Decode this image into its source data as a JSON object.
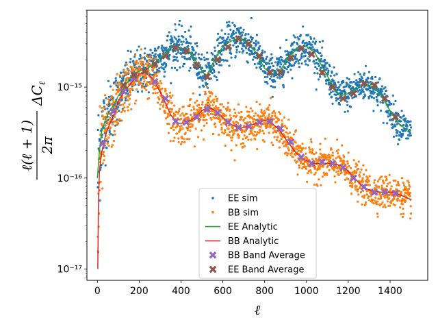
{
  "chart_data": {
    "type": "scatter",
    "title": "",
    "xlabel": "ℓ",
    "ylabel": "ℓ(ℓ+1)/2π ΔCℓ",
    "xscale": "linear",
    "yscale": "log",
    "xlim": [
      -50,
      1580
    ],
    "ylim": [
      7.5e-18,
      7e-15
    ],
    "xticks": [
      0,
      200,
      400,
      600,
      800,
      1000,
      1200,
      1400
    ],
    "yticks": [
      1e-17,
      1e-16,
      1e-15
    ],
    "ytick_labels": [
      "10⁻¹⁷",
      "10⁻¹⁶",
      "10⁻¹⁵"
    ],
    "legend_position": "lower-center",
    "series": [
      {
        "name": "EE sim",
        "kind": "scatter",
        "color": "#1f77b4",
        "note": "per-multipole noisy samples scattered around EE Analytic (about 1500 points)"
      },
      {
        "name": "BB sim",
        "kind": "scatter",
        "color": "#ff7f0e",
        "note": "per-multipole noisy samples scattered around BB Analytic (about 1500 points)"
      },
      {
        "name": "EE Analytic",
        "kind": "line",
        "color": "#2ca02c",
        "x": [
          0,
          10,
          20,
          40,
          60,
          80,
          100,
          130,
          160,
          200,
          240,
          280,
          320,
          360,
          400,
          440,
          480,
          520,
          560,
          600,
          640,
          680,
          720,
          760,
          800,
          840,
          880,
          920,
          960,
          1000,
          1040,
          1080,
          1120,
          1160,
          1200,
          1240,
          1280,
          1320,
          1360,
          1400,
          1440,
          1480,
          1500
        ],
        "y": [
          1e-16,
          2e-16,
          3.2e-16,
          4.5e-16,
          5.5e-16,
          6.5e-16,
          8e-16,
          1e-15,
          1.3e-15,
          1.5e-15,
          1.6e-15,
          1.9e-15,
          2.3e-15,
          2.8e-15,
          2.7e-15,
          2.5e-15,
          1.8e-15,
          1.3e-15,
          2e-15,
          2.8e-15,
          3.2e-15,
          3.5e-15,
          3e-15,
          2.4e-15,
          1.6e-15,
          1.4e-15,
          1.6e-15,
          2.2e-15,
          2.7e-15,
          2.8e-15,
          2.4e-15,
          1.6e-15,
          1.1e-15,
          8e-16,
          8.5e-16,
          1e-15,
          1.1e-15,
          1e-15,
          8e-16,
          5.5e-16,
          4e-16,
          3.4e-16,
          3.3e-16
        ]
      },
      {
        "name": "BB Analytic",
        "kind": "line",
        "color": "#d62728",
        "x": [
          2,
          5,
          10,
          20,
          40,
          60,
          80,
          100,
          130,
          160,
          200,
          230,
          270,
          310,
          350,
          380,
          420,
          460,
          500,
          530,
          560,
          600,
          640,
          680,
          720,
          760,
          800,
          830,
          870,
          910,
          950,
          990,
          1030,
          1070,
          1110,
          1150,
          1190,
          1230,
          1270,
          1310,
          1350,
          1390,
          1430,
          1470,
          1500
        ],
        "y": [
          1e-17,
          5e-17,
          1.2e-16,
          1.9e-16,
          3e-16,
          4e-16,
          5e-16,
          7e-16,
          9e-16,
          1.1e-15,
          1.4e-15,
          1.45e-15,
          1.2e-15,
          8e-16,
          5e-16,
          4e-16,
          4e-16,
          4.5e-16,
          5.5e-16,
          6e-16,
          5.6e-16,
          4.6e-16,
          3.9e-16,
          3.5e-16,
          3.7e-16,
          4e-16,
          4.3e-16,
          4.1e-16,
          3.4e-16,
          2.5e-16,
          1.9e-16,
          1.6e-16,
          1.45e-16,
          1.45e-16,
          1.45e-16,
          1.4e-16,
          1.25e-16,
          1e-16,
          8e-17,
          7.2e-17,
          7e-17,
          7e-17,
          6.8e-17,
          6.2e-17,
          5.8e-17
        ]
      },
      {
        "name": "BB Band Average",
        "kind": "marker",
        "marker": "X",
        "color": "#9467bd",
        "x": [
          25,
          75,
          125,
          175,
          225,
          275,
          325,
          375,
          425,
          475,
          525,
          575,
          625,
          675,
          725,
          775,
          825,
          875,
          925,
          975,
          1025,
          1075,
          1125,
          1175,
          1225,
          1275,
          1325,
          1375,
          1425
        ],
        "y": [
          2.4e-16,
          5.4e-16,
          9e-16,
          1.25e-15,
          1.5e-15,
          1.15e-15,
          7.5e-16,
          4.2e-16,
          4.1e-16,
          4.7e-16,
          5.7e-16,
          5.2e-16,
          4.1e-16,
          3.6e-16,
          3.7e-16,
          4.1e-16,
          4.2e-16,
          3.5e-16,
          2.5e-16,
          1.7e-16,
          1.45e-16,
          1.5e-16,
          1.45e-16,
          1.3e-16,
          1e-16,
          8e-17,
          7e-17,
          7e-17,
          6.8e-17
        ]
      },
      {
        "name": "EE Band Average",
        "kind": "marker",
        "marker": "X",
        "color": "#8c564b",
        "x": [
          125,
          175,
          225,
          275,
          325,
          375,
          425,
          475,
          525,
          575,
          625,
          675,
          725,
          775,
          825,
          875,
          925,
          975,
          1025,
          1075,
          1125,
          1175,
          1225,
          1275,
          1325,
          1375,
          1425
        ],
        "y": [
          1.05e-15,
          1.35e-15,
          1.5e-15,
          1.8e-15,
          2.2e-15,
          2.7e-15,
          2.5e-15,
          1.75e-15,
          1.3e-15,
          2e-15,
          2.75e-15,
          3.4e-15,
          3e-15,
          2.2e-15,
          1.45e-15,
          1.45e-15,
          2.1e-15,
          2.65e-15,
          2.3e-15,
          1.45e-15,
          1e-15,
          7.5e-16,
          8.5e-16,
          1.1e-15,
          1.05e-15,
          7.5e-16,
          4.7e-16
        ]
      }
    ]
  }
}
